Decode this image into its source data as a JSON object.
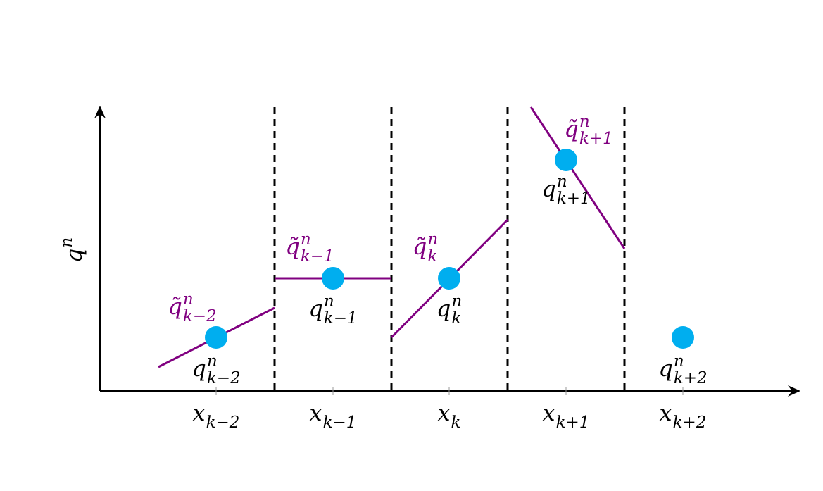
{
  "y_label": {
    "base": "q",
    "sup": "n"
  },
  "cells": [
    {
      "x_label": {
        "base": "x",
        "sub": "k−2"
      },
      "mean_label": {
        "base": "q",
        "sup": "n",
        "sub": "k−2"
      },
      "recon_label": {
        "base": "q̃",
        "sup": "n",
        "sub": "k−2"
      }
    },
    {
      "x_label": {
        "base": "x",
        "sub": "k−1"
      },
      "mean_label": {
        "base": "q",
        "sup": "n",
        "sub": "k−1"
      },
      "recon_label": {
        "base": "q̃",
        "sup": "n",
        "sub": "k−1"
      }
    },
    {
      "x_label": {
        "base": "x",
        "sub": "k"
      },
      "mean_label": {
        "base": "q",
        "sup": "n",
        "sub": "k"
      },
      "recon_label": {
        "base": "q̃",
        "sup": "n",
        "sub": "k"
      }
    },
    {
      "x_label": {
        "base": "x",
        "sub": "k+1"
      },
      "mean_label": {
        "base": "q",
        "sup": "n",
        "sub": "k+1"
      },
      "recon_label": {
        "base": "q̃",
        "sup": "n",
        "sub": "k+1"
      }
    },
    {
      "x_label": {
        "base": "x",
        "sub": "k+2"
      },
      "mean_label": {
        "base": "q",
        "sup": "n",
        "sub": "k+2"
      }
    }
  ]
}
